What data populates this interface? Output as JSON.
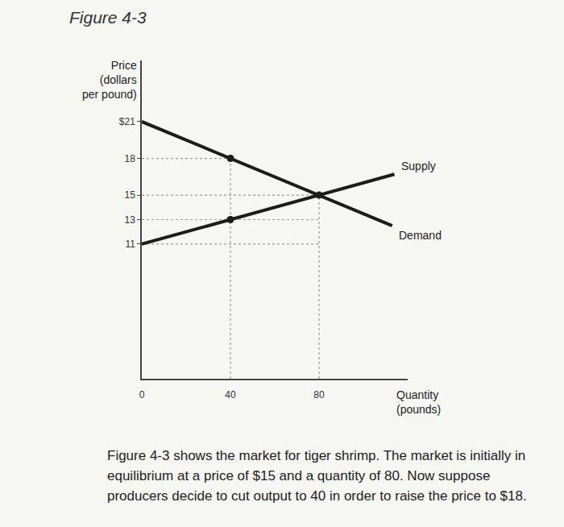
{
  "figure_label": "Figure 4-3",
  "caption": "Figure 4-3 shows the market for tiger shrimp. The market is initially in equilibrium at a price of $15 and a quantity of 80. Now suppose producers decide to cut output to 40 in order to raise the price to $18.",
  "chart_data": {
    "type": "line",
    "xlabel": [
      "Quantity",
      "(pounds)"
    ],
    "ylabel": [
      "Price",
      "(dollars",
      "per pound)"
    ],
    "series": [
      {
        "name": "Supply",
        "color": "#1c1c1c",
        "x": [
          0,
          114
        ],
        "values": [
          11,
          16.7
        ]
      },
      {
        "name": "Demand",
        "color": "#1c1c1c",
        "x": [
          0,
          113
        ],
        "values": [
          21,
          12.5
        ]
      }
    ],
    "points": {
      "x": [
        40,
        40,
        80
      ],
      "values": [
        18,
        13,
        15
      ],
      "color": "#1c1c1c",
      "marker": "circle"
    },
    "guides": [
      {
        "x": [
          0,
          40
        ],
        "values": [
          18,
          18
        ]
      },
      {
        "x": [
          40,
          40
        ],
        "values": [
          0,
          18
        ]
      },
      {
        "x": [
          0,
          80
        ],
        "values": [
          15,
          15
        ]
      },
      {
        "x": [
          80,
          80
        ],
        "values": [
          0,
          15
        ]
      },
      {
        "x": [
          0,
          80
        ],
        "values": [
          13,
          13
        ]
      },
      {
        "x": [
          0,
          80
        ],
        "values": [
          11,
          11
        ]
      }
    ],
    "guide_style": "dot",
    "xlim": [
      0,
      120
    ],
    "xticks": [
      0,
      40,
      80
    ],
    "ylim": [
      0,
      26
    ],
    "yticks": [
      11,
      13,
      15,
      18,
      {
        "value": 21,
        "label": "$21"
      }
    ],
    "grid": false,
    "legend": false
  }
}
